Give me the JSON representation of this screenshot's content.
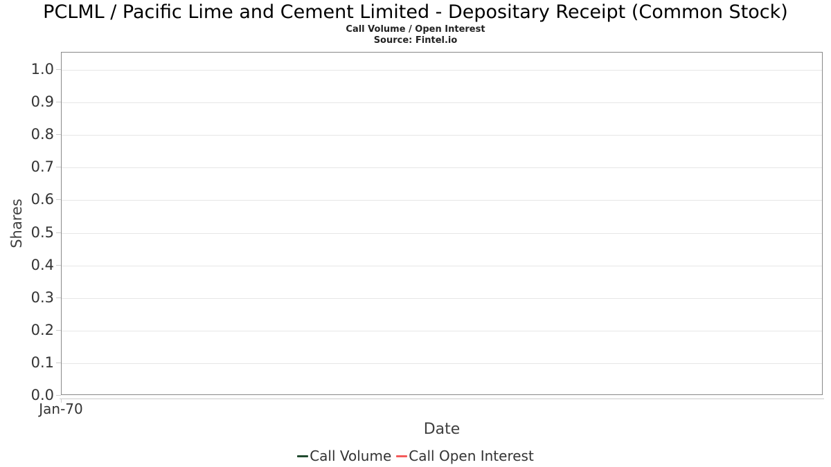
{
  "chart_data": {
    "type": "line",
    "title": "PCLML / Pacific Lime and Cement Limited - Depositary Receipt (Common Stock)",
    "subtitle": "Call Volume / Open Interest",
    "source": "Source: Fintel.io",
    "xlabel": "Date",
    "ylabel": "Shares",
    "ylim": [
      0.0,
      1.05
    ],
    "y_ticks": [
      "0.0",
      "0.1",
      "0.2",
      "0.3",
      "0.4",
      "0.5",
      "0.6",
      "0.7",
      "0.8",
      "0.9",
      "1.0"
    ],
    "x_ticks": [
      "Jan-70"
    ],
    "grid": "horizontal-only",
    "legend_position": "bottom-center",
    "series": [
      {
        "name": "Call Volume",
        "color": "#204a2e",
        "x": [],
        "values": []
      },
      {
        "name": "Call Open Interest",
        "color": "#f45b5b",
        "x": [],
        "values": []
      }
    ]
  },
  "style": {
    "plot_border_color": "#888888",
    "gridline_color": "#e6e6e6",
    "axis_line_color": "#cccccc",
    "tick_text_color": "#333333",
    "axis_label_color": "#404040",
    "title_color": "#000000",
    "background_color": "#ffffff"
  }
}
